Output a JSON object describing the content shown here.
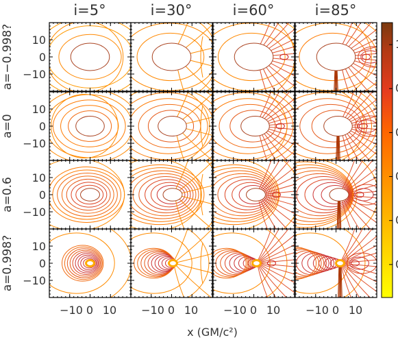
{
  "chart_data": {
    "type": "contour",
    "columns": [
      {
        "label": "i=5°",
        "inclination_deg": 5
      },
      {
        "label": "i=30°",
        "inclination_deg": 30
      },
      {
        "label": "i=60°",
        "inclination_deg": 60
      },
      {
        "label": "i=85°",
        "inclination_deg": 85
      }
    ],
    "rows": [
      {
        "label": "a=−0.998?",
        "spin": -0.998
      },
      {
        "label": "a=0",
        "spin": 0
      },
      {
        "label": "a=0.6",
        "spin": 0.6
      },
      {
        "label": "a=0.998?",
        "spin": 0.998
      }
    ],
    "xlabel": "x (GM/c²)",
    "xlim": [
      -20,
      20
    ],
    "ylim": [
      -20,
      20
    ],
    "x_tick_labels": [
      "−10",
      "0",
      "10"
    ],
    "y_tick_labels": [
      "10",
      "0",
      "−10"
    ],
    "x_ticks": [
      -10,
      0,
      10
    ],
    "y_ticks": [
      10,
      0,
      -10
    ],
    "colorbar": {
      "colors": [
        "#ffff00",
        "#ffcc00",
        "#ff9900",
        "#ff6600",
        "#e63c1e",
        "#b23a14",
        "#7a3a10"
      ],
      "tick_labels": [
        "0",
        "0",
        "0",
        "0",
        "0",
        "1"
      ]
    },
    "shadow_radius_x": [
      9.5,
      7.0,
      4.7,
      2.0
    ],
    "shadow_radius_y": [
      8.0,
      5.8,
      3.7,
      1.8
    ],
    "shadow_offset_x": [
      0,
      1.0,
      1.5,
      2.0
    ]
  }
}
